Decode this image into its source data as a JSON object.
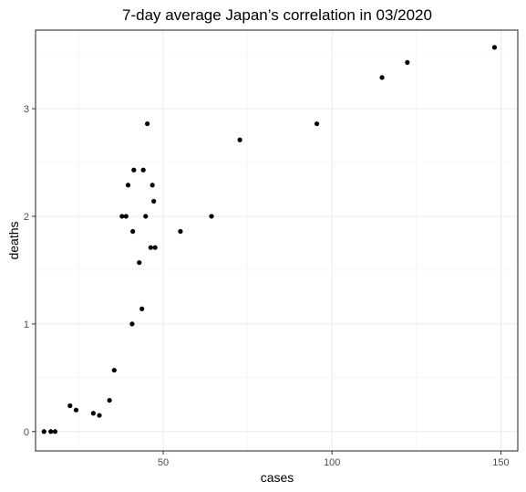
{
  "chart_data": {
    "type": "scatter",
    "title": "7-day average Japan’s correlation in 03/2020",
    "xlabel": "cases",
    "ylabel": "deaths",
    "xlim": [
      12.2,
      155
    ],
    "ylim": [
      -0.18,
      3.73
    ],
    "xticks": [
      50,
      100,
      150
    ],
    "yticks": [
      0,
      1,
      2,
      3
    ],
    "xminor": [
      25,
      75,
      125
    ],
    "yminor": [
      0.5,
      1.5,
      2.5,
      3.5
    ],
    "grid": true,
    "point_color": "#000000",
    "points": [
      {
        "x": 14.7,
        "y": 0.0
      },
      {
        "x": 16.7,
        "y": 0.0
      },
      {
        "x": 18.0,
        "y": 0.0
      },
      {
        "x": 22.4,
        "y": 0.24
      },
      {
        "x": 24.2,
        "y": 0.2
      },
      {
        "x": 29.3,
        "y": 0.17
      },
      {
        "x": 31.1,
        "y": 0.15
      },
      {
        "x": 34.1,
        "y": 0.29
      },
      {
        "x": 35.5,
        "y": 0.57
      },
      {
        "x": 37.8,
        "y": 2.0
      },
      {
        "x": 39.0,
        "y": 2.0
      },
      {
        "x": 39.6,
        "y": 2.29
      },
      {
        "x": 40.8,
        "y": 1.0
      },
      {
        "x": 41.0,
        "y": 1.86
      },
      {
        "x": 41.3,
        "y": 2.43
      },
      {
        "x": 42.9,
        "y": 1.57
      },
      {
        "x": 43.7,
        "y": 1.14
      },
      {
        "x": 44.1,
        "y": 2.43
      },
      {
        "x": 44.8,
        "y": 2.0
      },
      {
        "x": 45.3,
        "y": 2.86
      },
      {
        "x": 46.3,
        "y": 1.71
      },
      {
        "x": 46.8,
        "y": 2.29
      },
      {
        "x": 47.2,
        "y": 2.14
      },
      {
        "x": 47.6,
        "y": 1.71
      },
      {
        "x": 55.1,
        "y": 1.86
      },
      {
        "x": 64.3,
        "y": 2.0
      },
      {
        "x": 72.7,
        "y": 2.71
      },
      {
        "x": 95.5,
        "y": 2.86
      },
      {
        "x": 114.8,
        "y": 3.29
      },
      {
        "x": 122.3,
        "y": 3.43
      },
      {
        "x": 148.1,
        "y": 3.57
      }
    ]
  }
}
